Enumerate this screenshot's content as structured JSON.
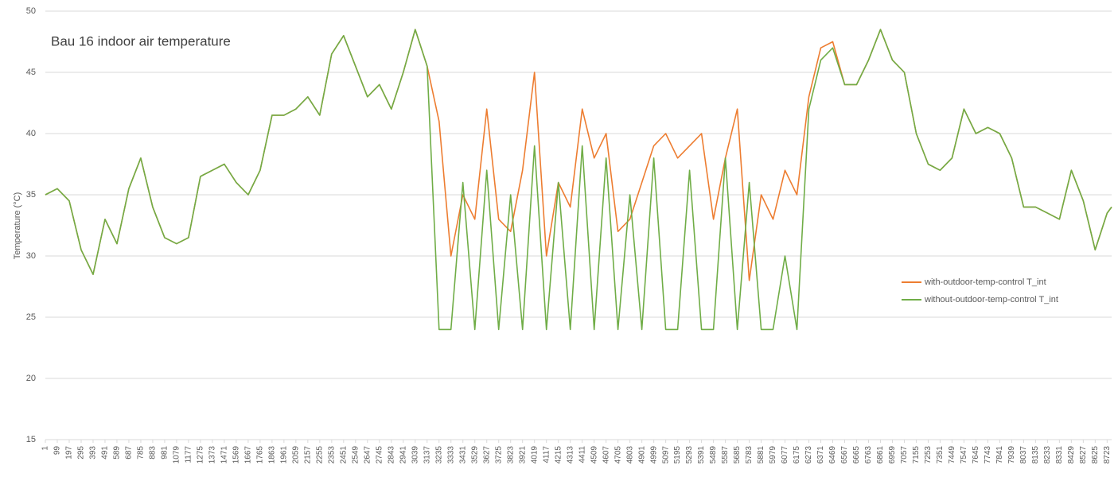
{
  "chart_data": {
    "type": "line",
    "title": "Bau 16 indoor air temperature",
    "y_label": "Temperature (°C)",
    "x": [
      1,
      99,
      197,
      295,
      393,
      491,
      589,
      687,
      785,
      883,
      981,
      1079,
      1177,
      1275,
      1373,
      1471,
      1569,
      1667,
      1765,
      1863,
      1961,
      2059,
      2157,
      2255,
      2353,
      2451,
      2549,
      2647,
      2745,
      2843,
      2941,
      3039,
      3137,
      3235,
      3333,
      3431,
      3529,
      3627,
      3725,
      3823,
      3921,
      4019,
      4117,
      4215,
      4313,
      4411,
      4509,
      4607,
      4705,
      4803,
      4901,
      4999,
      5097,
      5195,
      5293,
      5391,
      5489,
      5587,
      5685,
      5783,
      5881,
      5979,
      6077,
      6175,
      6273,
      6371,
      6469,
      6567,
      6665,
      6763,
      6861,
      6959,
      7057,
      7155,
      7253,
      7351,
      7449,
      7547,
      7645,
      7743,
      7841,
      7939,
      8037,
      8135,
      8233,
      8331,
      8429,
      8527,
      8625,
      8723,
      8760
    ],
    "series": [
      {
        "name": "with-outdoor-temp-control T_int",
        "color": "#ed7d31",
        "values": [
          35,
          35.5,
          34.5,
          30.5,
          28.5,
          33,
          31,
          35.5,
          38,
          34,
          31.5,
          31,
          31.5,
          36.5,
          37,
          37.5,
          36,
          35,
          37,
          41.5,
          41.5,
          42,
          43,
          41.5,
          46.5,
          48,
          45.5,
          43,
          44,
          42,
          45,
          48.5,
          45.5,
          41,
          30,
          35,
          33,
          42,
          33,
          32,
          37,
          45,
          30,
          36,
          34,
          42,
          38,
          40,
          32,
          33,
          36,
          39,
          40,
          38,
          39,
          40,
          33,
          38,
          42,
          28,
          35,
          33,
          37,
          35,
          43,
          47,
          47.5,
          44,
          44,
          46,
          48.5,
          46,
          45,
          40,
          37.5,
          37,
          38,
          42,
          40,
          40.5,
          40,
          38,
          34,
          34,
          33.5,
          33,
          37,
          34.5,
          30.5,
          33.5,
          34
        ]
      },
      {
        "name": "without-outdoor-temp-control T_int",
        "color": "#70ad47",
        "values": [
          35,
          35.5,
          34.5,
          30.5,
          28.5,
          33,
          31,
          35.5,
          38,
          34,
          31.5,
          31,
          31.5,
          36.5,
          37,
          37.5,
          36,
          35,
          37,
          41.5,
          41.5,
          42,
          43,
          41.5,
          46.5,
          48,
          45.5,
          43,
          44,
          42,
          45,
          48.5,
          45.5,
          24,
          24,
          36,
          24,
          37,
          24,
          35,
          24,
          39,
          24,
          36,
          24,
          39,
          24,
          38,
          24,
          35,
          24,
          38,
          24,
          24,
          37,
          24,
          24,
          38,
          24,
          36,
          24,
          24,
          30,
          24,
          42,
          46,
          47,
          44,
          44,
          46,
          48.5,
          46,
          45,
          40,
          37.5,
          37,
          38,
          42,
          40,
          40.5,
          40,
          38,
          34,
          34,
          33.5,
          33,
          37,
          34.5,
          30.5,
          33.5,
          34
        ]
      }
    ],
    "xlim": [
      1,
      8760
    ],
    "xticks": [
      1,
      99,
      197,
      295,
      393,
      491,
      589,
      687,
      785,
      883,
      981,
      1079,
      1177,
      1275,
      1373,
      1471,
      1569,
      1667,
      1765,
      1863,
      1961,
      2059,
      2157,
      2255,
      2353,
      2451,
      2549,
      2647,
      2745,
      2843,
      2941,
      3039,
      3137,
      3235,
      3333,
      3431,
      3529,
      3627,
      3725,
      3823,
      3921,
      4019,
      4117,
      4215,
      4313,
      4411,
      4509,
      4607,
      4705,
      4803,
      4901,
      4999,
      5097,
      5195,
      5293,
      5391,
      5489,
      5587,
      5685,
      5783,
      5881,
      5979,
      6077,
      6175,
      6273,
      6371,
      6469,
      6567,
      6665,
      6763,
      6861,
      6959,
      7057,
      7155,
      7253,
      7351,
      7449,
      7547,
      7645,
      7743,
      7841,
      7939,
      8037,
      8135,
      8233,
      8331,
      8429,
      8527,
      8625,
      8723
    ],
    "ylim": [
      15,
      50
    ],
    "yticks": [
      15,
      20,
      25,
      30,
      35,
      40,
      45,
      50
    ],
    "grid": true,
    "legend": "right"
  }
}
